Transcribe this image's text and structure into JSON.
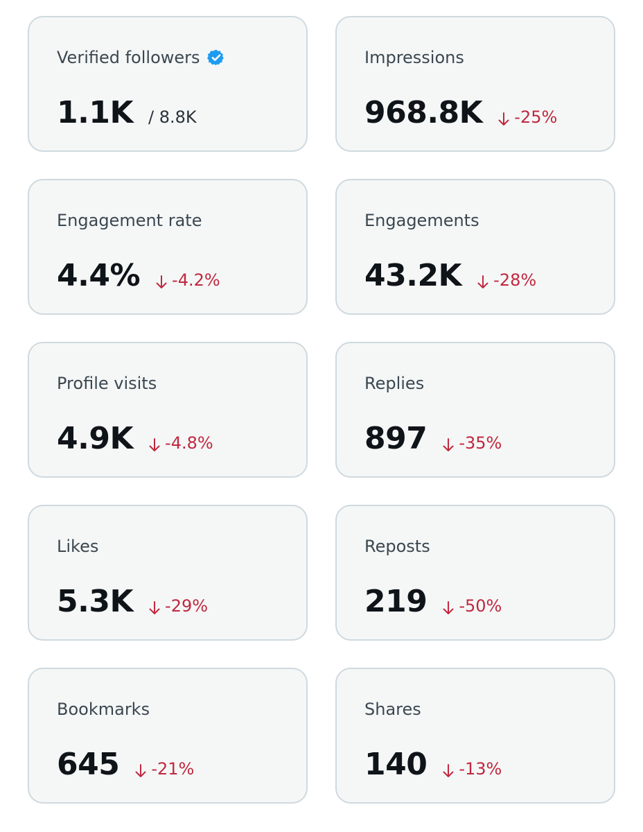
{
  "colors": {
    "card_background": "#f5f7f7",
    "card_border": "#cfd9de",
    "label": "#3b4750",
    "value": "#0f1419",
    "negative_change": "#c0283e",
    "verified_badge": "#1d9bf0"
  },
  "metrics": [
    {
      "label": "Verified followers",
      "value": "1.1K",
      "total": "/ 8.8K",
      "icon": "verified-badge-icon"
    },
    {
      "label": "Impressions",
      "value": "968.8K",
      "change": "-25%",
      "change_icon": "arrow-down-icon"
    },
    {
      "label": "Engagement rate",
      "value": "4.4%",
      "change": "-4.2%",
      "change_icon": "arrow-down-icon"
    },
    {
      "label": "Engagements",
      "value": "43.2K",
      "change": "-28%",
      "change_icon": "arrow-down-icon"
    },
    {
      "label": "Profile visits",
      "value": "4.9K",
      "change": "-4.8%",
      "change_icon": "arrow-down-icon"
    },
    {
      "label": "Replies",
      "value": "897",
      "change": "-35%",
      "change_icon": "arrow-down-icon"
    },
    {
      "label": "Likes",
      "value": "5.3K",
      "change": "-29%",
      "change_icon": "arrow-down-icon"
    },
    {
      "label": "Reposts",
      "value": "219",
      "change": "-50%",
      "change_icon": "arrow-down-icon"
    },
    {
      "label": "Bookmarks",
      "value": "645",
      "change": "-21%",
      "change_icon": "arrow-down-icon"
    },
    {
      "label": "Shares",
      "value": "140",
      "change": "-13%",
      "change_icon": "arrow-down-icon"
    }
  ]
}
